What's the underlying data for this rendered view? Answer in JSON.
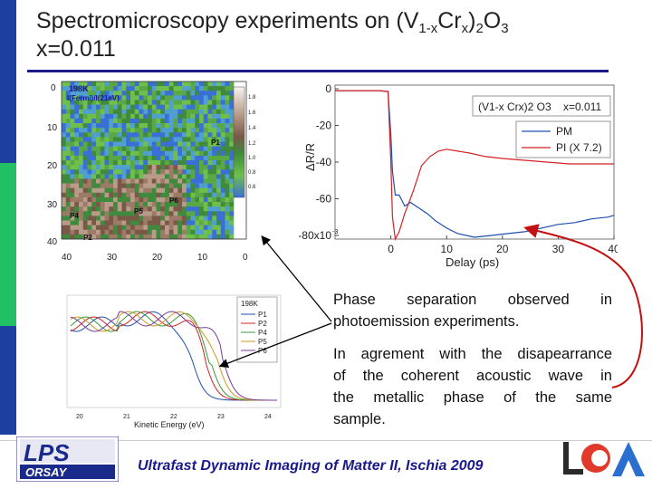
{
  "title": {
    "line1_prefix": "Spectromicroscopy experiments on (V",
    "sub1": "1-x",
    "mid1": "Cr",
    "sub2": "x",
    "mid2": ")",
    "sub3": "2",
    "mid3": "O",
    "sub4": "3",
    "line2": "x=0.011"
  },
  "map_figure": {
    "label_temp": "198K",
    "label_ratio": "I(Fermi)/I(21eV)",
    "y_ticks": [
      "0",
      "10",
      "20",
      "30",
      "40"
    ],
    "x_ticks": [
      "40",
      "30",
      "20",
      "10",
      "0"
    ],
    "colorbar_ticks": [
      "1.8",
      "1.6",
      "1.4",
      "1.2",
      "1.0",
      "0.8",
      "0.6"
    ],
    "points": [
      "P1",
      "P6",
      "P5",
      "P4",
      "P2"
    ]
  },
  "reflectivity_figure": {
    "legend_title": "(V1-x Crx)2 O3",
    "legend_x": "x=0.011",
    "series_pm": "PM",
    "series_pi": "PI (X 7.2)",
    "colors": {
      "pm": "#1f4fb0",
      "pi": "#d42020"
    }
  },
  "chart_data": {
    "type": "line",
    "title": "",
    "xlabel": "Delay (ps)",
    "ylabel": "ΔR/R",
    "xlim": [
      -10,
      40
    ],
    "ylim": [
      -82,
      2
    ],
    "x_ticks": [
      "0",
      "10",
      "20",
      "30",
      "40"
    ],
    "y_ticks": [
      "0",
      "-20",
      "-40",
      "-60",
      "-80x10"
    ],
    "y_tick_exponent": "-3",
    "series": [
      {
        "name": "PM",
        "x": [
          -10,
          -2,
          -0.5,
          0,
          0.3,
          0.8,
          1.5,
          2.5,
          3.5,
          5,
          6.5,
          8,
          10,
          12,
          15,
          18,
          21,
          24,
          27,
          30,
          33,
          36,
          39,
          40
        ],
        "values": [
          -1,
          -1,
          -1.5,
          -25,
          -45,
          -58,
          -58,
          -64,
          -62,
          -65,
          -68,
          -72,
          -76,
          -79,
          -81,
          -80,
          -79,
          -78,
          -76,
          -74,
          -73,
          -71,
          -70,
          -69
        ]
      },
      {
        "name": "PI (X 7.2)",
        "x": [
          -10,
          -2,
          -0.5,
          0,
          0.3,
          0.8,
          1.5,
          2.5,
          4,
          5.5,
          7,
          8.5,
          10,
          12,
          14,
          17,
          20,
          24,
          28,
          32,
          36,
          40
        ],
        "values": [
          -1,
          -1,
          -1.5,
          -40,
          -70,
          -82,
          -78,
          -68,
          -56,
          -42,
          -37,
          -34,
          -33,
          -34,
          -35,
          -37,
          -38,
          -39,
          -40,
          -41,
          -41,
          -41
        ]
      }
    ]
  },
  "spectra_figure": {
    "legend_title": "198K",
    "legend_items": [
      "P1",
      "P2",
      "P4",
      "P5",
      "P6"
    ],
    "xlabel": "Kinetic Energy (eV)",
    "x_ticks": [
      "20",
      "21",
      "22",
      "23",
      "24"
    ]
  },
  "text_block_1": {
    "line1": "Phase separation observed in",
    "line2": "photoemission experiments."
  },
  "text_block_2": {
    "line1": "In agrement with the disapearrance",
    "line2": "of the coherent acoustic wave in",
    "line3": "the metallic phase of the same",
    "line4": "sample."
  },
  "footer": "Ultrafast Dynamic Imaging of Matter II, Ischia 2009",
  "logos": {
    "left_top": "LPS",
    "left_bottom": "ORSAY"
  }
}
